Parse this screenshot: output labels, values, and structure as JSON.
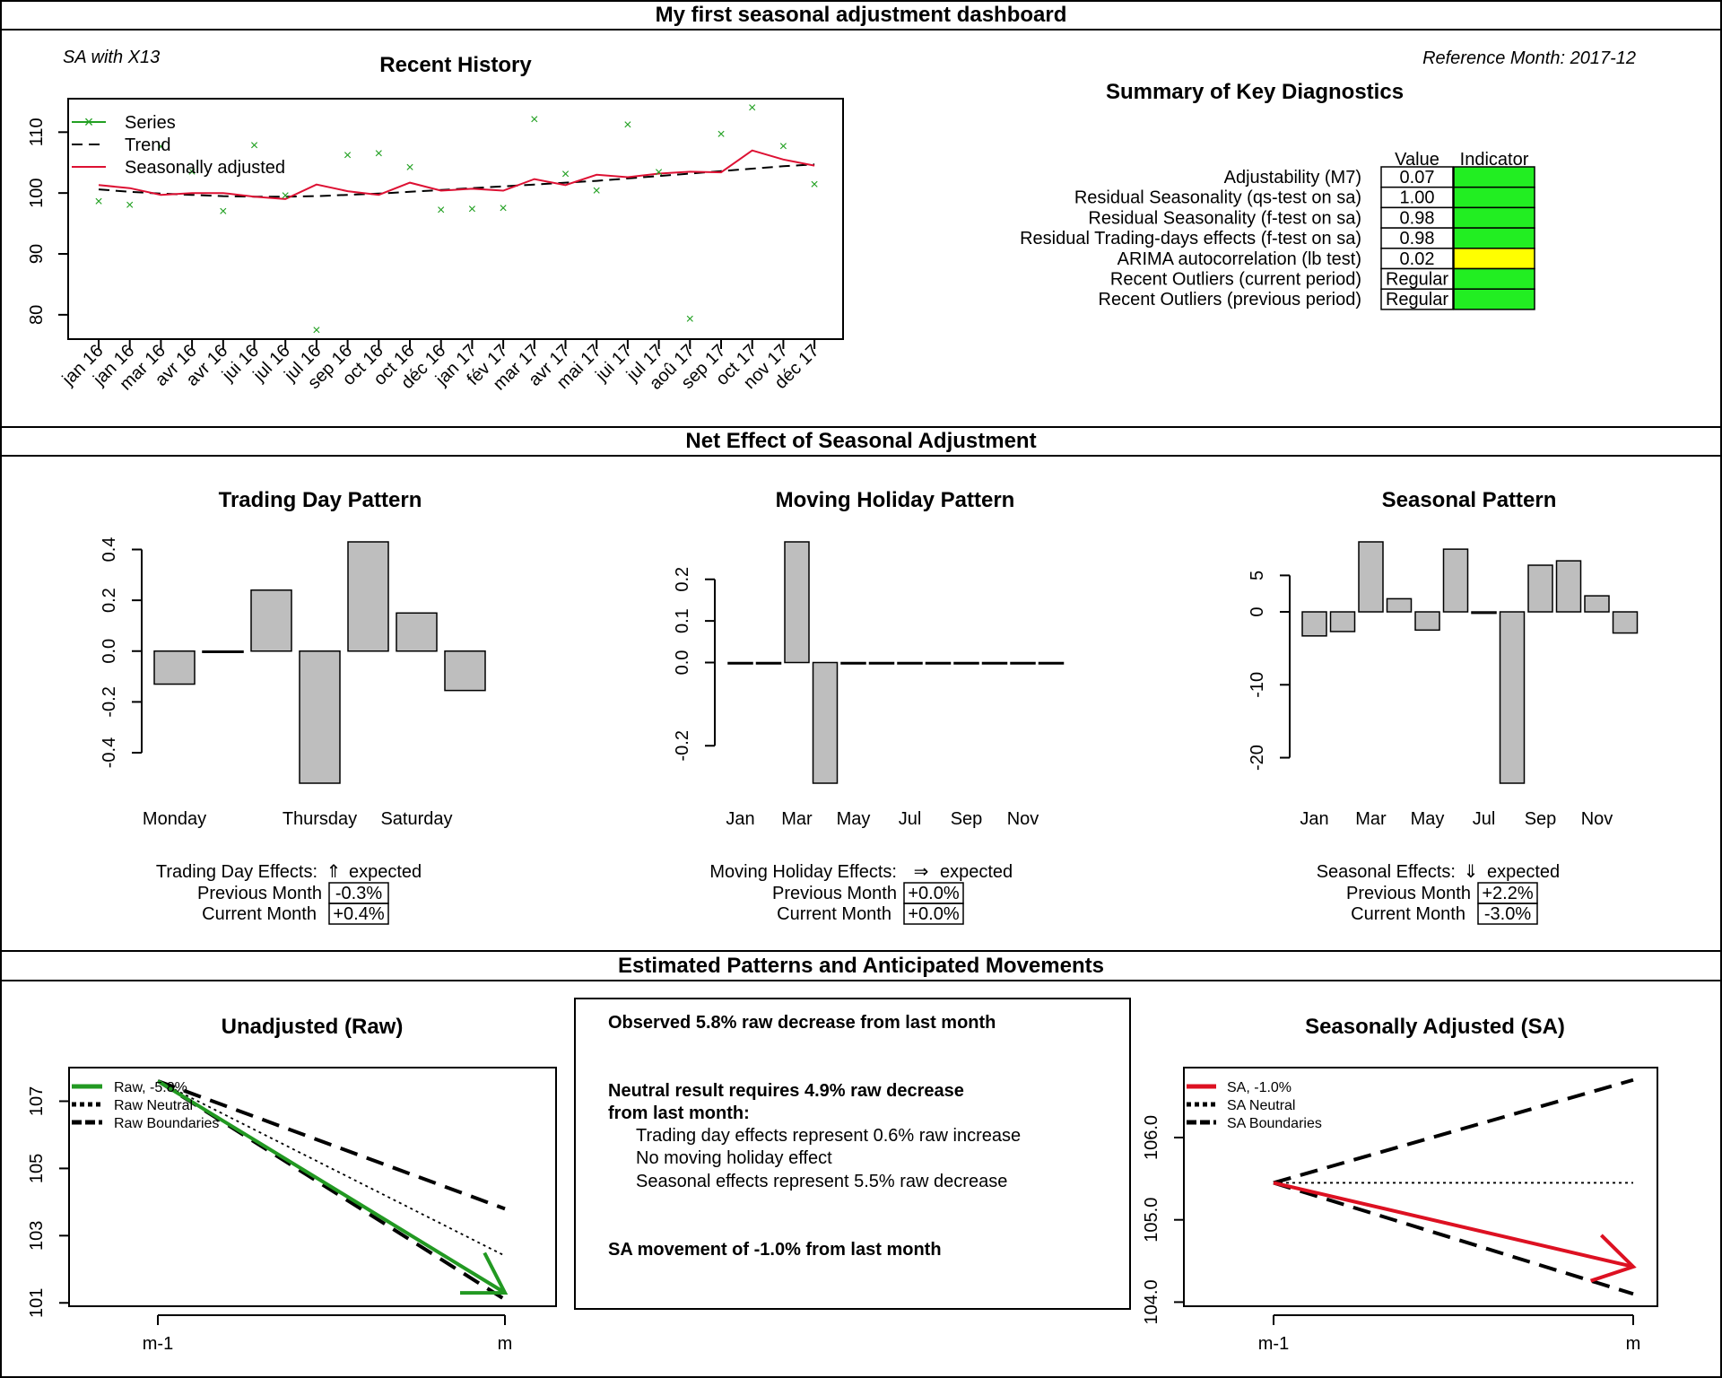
{
  "dashboard": {
    "title": "My first seasonal adjustment dashboard",
    "method_label": "SA with X13",
    "reference_month": "Reference Month: 2017-12",
    "section_net_effect": "Net Effect of Seasonal Adjustment",
    "section_patterns": "Estimated Patterns and Anticipated Movements"
  },
  "diagnostics": {
    "title": "Summary of Key Diagnostics",
    "col_value": "Value",
    "col_indicator": "Indicator",
    "colors": {
      "green": "#22ee22",
      "yellow": "#ffff00"
    },
    "rows": [
      {
        "label": "Adjustability (M7)",
        "value": "0.07",
        "indicator": "green"
      },
      {
        "label": "Residual Seasonality (qs-test on sa)",
        "value": "1.00",
        "indicator": "green"
      },
      {
        "label": "Residual Seasonality (f-test on sa)",
        "value": "0.98",
        "indicator": "green"
      },
      {
        "label": "Residual Trading-days effects (f-test on sa)",
        "value": "0.98",
        "indicator": "green"
      },
      {
        "label": "ARIMA autocorrelation (lb test)",
        "value": "0.02",
        "indicator": "yellow"
      },
      {
        "label": "Recent Outliers (current period)",
        "value": "Regular",
        "indicator": "green"
      },
      {
        "label": "Recent Outliers (previous period)",
        "value": "Regular",
        "indicator": "green"
      }
    ]
  },
  "effects": {
    "trading": {
      "heading": "Trading Day Effects:",
      "arrow": "⇑",
      "expected": "expected",
      "prev_label": "Previous Month",
      "prev_value": "-0.3%",
      "curr_label": "Current Month",
      "curr_value": "+0.4%"
    },
    "holiday": {
      "heading": "Moving Holiday Effects:",
      "arrow": "⇒",
      "expected": "expected",
      "prev_label": "Previous Month",
      "prev_value": "+0.0%",
      "curr_label": "Current Month",
      "curr_value": "+0.0%"
    },
    "seasonal": {
      "heading": "Seasonal Effects:",
      "arrow": "⇓",
      "expected": "expected",
      "prev_label": "Previous Month",
      "prev_value": "+2.2%",
      "curr_label": "Current Month",
      "curr_value": "-3.0%"
    }
  },
  "summary_text": {
    "observed": "Observed 5.8% raw decrease from last month",
    "neutral_1": "Neutral result requires 4.9% raw decrease",
    "neutral_2": "from last month:",
    "item_1": "Trading day effects represent 0.6% raw increase",
    "item_2": "No moving holiday effect",
    "item_3": "Seasonal effects represent 5.5% raw decrease",
    "sa_movement": "SA movement of -1.0% from last month"
  },
  "chart_data": [
    {
      "id": "history",
      "type": "line",
      "title": "Recent History",
      "x_labels": [
        "jan 16",
        "jan 16",
        "mar 16",
        "avr 16",
        "avr 16",
        "jui 16",
        "jul 16",
        "jul 16",
        "sep 16",
        "oct 16",
        "oct 16",
        "déc 16",
        "jan 17",
        "fév 17",
        "mar 17",
        "avr 17",
        "mai 17",
        "jui 17",
        "jul 17",
        "aoû 17",
        "sep 17",
        "oct 17",
        "nov 17",
        "déc 17"
      ],
      "y_ticks": [
        80,
        90,
        100,
        110
      ],
      "ylim": [
        76,
        115.5
      ],
      "legend": [
        "Series",
        "Trend",
        "Seasonally adjusted"
      ],
      "colors": {
        "series": "#22a022",
        "trend": "#000000",
        "sa": "#dd1133"
      },
      "series": [
        {
          "name": "Series",
          "values": [
            98.6,
            98.0,
            107.6,
            103.5,
            97.0,
            107.8,
            99.6,
            77.5,
            106.2,
            106.5,
            104.2,
            97.2,
            97.4,
            97.5,
            112.1,
            103.1,
            100.4,
            111.2,
            103.4,
            79.3,
            109.7,
            114.0,
            107.7,
            101.4
          ]
        },
        {
          "name": "Trend",
          "values": [
            100.6,
            100.2,
            99.9,
            99.7,
            99.5,
            99.4,
            99.4,
            99.5,
            99.7,
            99.9,
            100.2,
            100.5,
            100.8,
            101.1,
            101.4,
            101.7,
            102.0,
            102.4,
            102.8,
            103.2,
            103.6,
            104.0,
            104.4,
            104.7
          ]
        },
        {
          "name": "Seasonally adjusted",
          "values": [
            101.3,
            100.8,
            99.7,
            100.0,
            100.0,
            99.4,
            99.0,
            101.4,
            100.3,
            99.7,
            101.7,
            100.4,
            100.7,
            100.4,
            102.3,
            101.3,
            103.0,
            102.6,
            103.2,
            103.5,
            103.4,
            107.0,
            105.5,
            104.5
          ]
        }
      ]
    },
    {
      "id": "trading",
      "type": "bar",
      "title": "Trading Day Pattern",
      "categories": [
        "Monday",
        "Tuesday",
        "Wednesday",
        "Thursday",
        "Friday",
        "Saturday",
        "Sunday"
      ],
      "shown_labels": [
        "Monday",
        "Thursday",
        "Saturday"
      ],
      "values": [
        -0.13,
        -0.005,
        0.24,
        -0.52,
        0.43,
        0.15,
        -0.155
      ],
      "y_ticks": [
        -0.4,
        -0.2,
        0.0,
        0.2,
        0.4
      ],
      "y_tick_labels": [
        "-0.4",
        "-0.2",
        "0.0",
        "0.2",
        "0.4"
      ],
      "ylim": [
        -0.52,
        0.43
      ],
      "bar_color": "#bebebe"
    },
    {
      "id": "holiday",
      "type": "bar",
      "title": "Moving Holiday Pattern",
      "categories": [
        "Jan",
        "Feb",
        "Mar",
        "Apr",
        "May",
        "Jun",
        "Jul",
        "Aug",
        "Sep",
        "Oct",
        "Nov",
        "Dec"
      ],
      "shown_labels": [
        "Jan",
        "Mar",
        "May",
        "Jul",
        "Sep",
        "Nov"
      ],
      "values": [
        0,
        0,
        0.29,
        -0.29,
        0,
        0,
        0,
        0,
        0,
        0,
        0,
        0
      ],
      "y_ticks": [
        -0.2,
        0.0,
        0.1,
        0.2
      ],
      "y_tick_labels": [
        "-0.2",
        "0.0",
        "0.1",
        "0.2"
      ],
      "ylim": [
        -0.29,
        0.29
      ],
      "bar_color": "#bebebe"
    },
    {
      "id": "seasonal",
      "type": "bar",
      "title": "Seasonal Pattern",
      "categories": [
        "Jan",
        "Feb",
        "Mar",
        "Apr",
        "May",
        "Jun",
        "Jul",
        "Aug",
        "Sep",
        "Oct",
        "Nov",
        "Dec"
      ],
      "shown_labels": [
        "Jan",
        "Mar",
        "May",
        "Jul",
        "Sep",
        "Nov"
      ],
      "values": [
        -3.3,
        -2.7,
        9.6,
        1.8,
        -2.5,
        8.6,
        -0.2,
        -23.5,
        6.4,
        7.0,
        2.2,
        -2.9
      ],
      "y_ticks": [
        -20,
        -10,
        0,
        5
      ],
      "y_tick_labels": [
        "-20",
        "-10",
        "0",
        "5"
      ],
      "ylim": [
        -23.5,
        9.6
      ],
      "bar_color": "#bebebe"
    },
    {
      "id": "raw",
      "type": "line",
      "title": "Unadjusted (Raw)",
      "x_labels": [
        "m-1",
        "m"
      ],
      "y_ticks": [
        101,
        103,
        105,
        107
      ],
      "ylim": [
        100.9,
        108.0
      ],
      "legend": [
        "Raw, -5.8%",
        "Raw Neutral",
        "Raw Boundaries"
      ],
      "color": "#229922",
      "arrow": [
        107.6,
        101.3
      ],
      "neutral": [
        107.6,
        102.4
      ],
      "boundary_upper": [
        107.6,
        103.8
      ],
      "boundary_lower": [
        107.6,
        101.1
      ]
    },
    {
      "id": "sa",
      "type": "line",
      "title": "Seasonally Adjusted (SA)",
      "x_labels": [
        "m-1",
        "m"
      ],
      "y_ticks": [
        104.0,
        105.0,
        106.0
      ],
      "y_tick_labels": [
        "104.0",
        "105.0",
        "106.0"
      ],
      "ylim": [
        103.95,
        106.85
      ],
      "legend": [
        "SA, -1.0%",
        "SA Neutral",
        "SA Boundaries"
      ],
      "color": "#dd1122",
      "arrow": [
        105.45,
        104.43
      ],
      "neutral": [
        105.45,
        105.45
      ],
      "boundary_upper": [
        105.45,
        106.7
      ],
      "boundary_lower": [
        105.45,
        104.1
      ]
    }
  ]
}
